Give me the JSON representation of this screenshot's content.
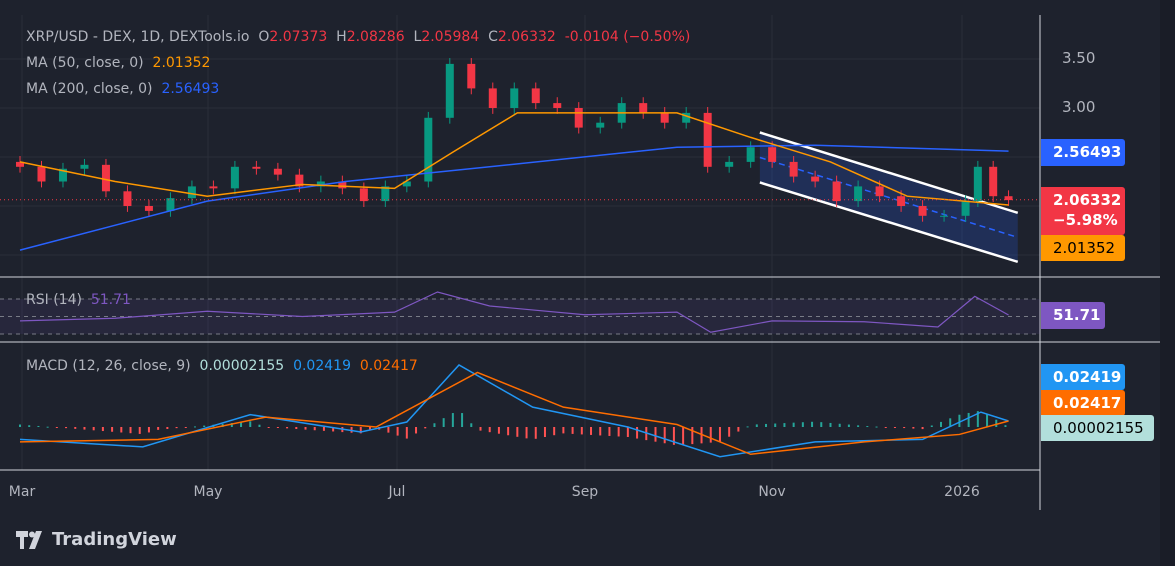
{
  "header": {
    "symbol": "XRP/USD - DEX, 1D, DEXTools.io",
    "o_label": "O",
    "o": "2.07373",
    "h_label": "H",
    "h": "2.08286",
    "l_label": "L",
    "l": "2.05984",
    "c_label": "C",
    "c": "2.06332",
    "change": "-0.0104 (−0.50%)"
  },
  "ma50": {
    "label": "MA (50, close, 0)",
    "value": "2.01352",
    "color": "#ff9800"
  },
  "ma200": {
    "label": "MA (200, close, 0)",
    "value": "2.56493",
    "color": "#2962ff"
  },
  "rsi": {
    "label": "RSI (14)",
    "value": "51.71",
    "color": "#7e57c2"
  },
  "macd": {
    "label": "MACD (12, 26, close, 9)",
    "hist": "0.00002155",
    "macd": "0.02419",
    "signal": "0.02417"
  },
  "price_axis": {
    "ticks": [
      "3.50",
      "3.00"
    ],
    "tags": {
      "ma200": "2.56493",
      "price": "2.06332",
      "price_change": "−5.98%",
      "ma50": "2.01352",
      "rsi": "51.71",
      "macd": "0.02419",
      "signal": "0.02417",
      "hist": "0.00002155"
    }
  },
  "time_axis": [
    "Mar",
    "May",
    "Jul",
    "Sep",
    "Nov",
    "2026"
  ],
  "branding": {
    "name": "TradingView"
  },
  "colors": {
    "up": "#089981",
    "down": "#f23645",
    "background": "#1e222d"
  },
  "chart_data": {
    "type": "candlestick",
    "price_range": [
      1.5,
      3.75
    ],
    "closes": [
      [
        "2025-03-01",
        2.4
      ],
      [
        "2025-03-08",
        2.25
      ],
      [
        "2025-03-15",
        2.38
      ],
      [
        "2025-03-22",
        2.42
      ],
      [
        "2025-03-29",
        2.15
      ],
      [
        "2025-04-05",
        2.0
      ],
      [
        "2025-04-12",
        1.95
      ],
      [
        "2025-04-19",
        2.08
      ],
      [
        "2025-04-26",
        2.2
      ],
      [
        "2025-05-03",
        2.18
      ],
      [
        "2025-05-10",
        2.4
      ],
      [
        "2025-05-17",
        2.38
      ],
      [
        "2025-05-24",
        2.32
      ],
      [
        "2025-05-31",
        2.2
      ],
      [
        "2025-06-07",
        2.25
      ],
      [
        "2025-06-14",
        2.18
      ],
      [
        "2025-06-21",
        2.05
      ],
      [
        "2025-06-28",
        2.2
      ],
      [
        "2025-07-05",
        2.25
      ],
      [
        "2025-07-12",
        2.9
      ],
      [
        "2025-07-19",
        3.45
      ],
      [
        "2025-07-26",
        3.2
      ],
      [
        "2025-08-02",
        3.0
      ],
      [
        "2025-08-09",
        3.2
      ],
      [
        "2025-08-16",
        3.05
      ],
      [
        "2025-08-23",
        3.0
      ],
      [
        "2025-08-30",
        2.8
      ],
      [
        "2025-09-06",
        2.85
      ],
      [
        "2025-09-13",
        3.05
      ],
      [
        "2025-09-20",
        2.95
      ],
      [
        "2025-09-27",
        2.85
      ],
      [
        "2025-10-04",
        2.95
      ],
      [
        "2025-10-11",
        2.4
      ],
      [
        "2025-10-18",
        2.45
      ],
      [
        "2025-10-25",
        2.6
      ],
      [
        "2025-11-01",
        2.45
      ],
      [
        "2025-11-08",
        2.3
      ],
      [
        "2025-11-15",
        2.25
      ],
      [
        "2025-11-22",
        2.05
      ],
      [
        "2025-11-29",
        2.2
      ],
      [
        "2025-12-06",
        2.1
      ],
      [
        "2025-12-13",
        2.0
      ],
      [
        "2025-12-20",
        1.9
      ],
      [
        "2025-12-27",
        1.9
      ],
      [
        "2026-01-03",
        2.05
      ],
      [
        "2026-01-07",
        2.4
      ],
      [
        "2026-01-12",
        2.1
      ],
      [
        "2026-01-17",
        2.06
      ]
    ],
    "ma50": [
      [
        "2025-03-01",
        2.45
      ],
      [
        "2025-04-01",
        2.25
      ],
      [
        "2025-05-01",
        2.1
      ],
      [
        "2025-06-01",
        2.22
      ],
      [
        "2025-07-01",
        2.18
      ],
      [
        "2025-07-20",
        2.55
      ],
      [
        "2025-08-10",
        2.95
      ],
      [
        "2025-09-01",
        2.95
      ],
      [
        "2025-10-01",
        2.95
      ],
      [
        "2025-10-25",
        2.7
      ],
      [
        "2025-11-20",
        2.45
      ],
      [
        "2025-12-15",
        2.1
      ],
      [
        "2026-01-17",
        2.01
      ]
    ],
    "ma200": [
      [
        "2025-03-01",
        1.55
      ],
      [
        "2025-05-01",
        2.05
      ],
      [
        "2025-06-15",
        2.25
      ],
      [
        "2025-08-01",
        2.4
      ],
      [
        "2025-10-01",
        2.6
      ],
      [
        "2025-11-15",
        2.62
      ],
      [
        "2026-01-17",
        2.56
      ]
    ],
    "channel": {
      "upper": [
        [
          "2025-10-28",
          2.75
        ],
        [
          "2026-01-20",
          1.93
        ]
      ],
      "lower": [
        [
          "2025-10-28",
          2.24
        ],
        [
          "2026-01-20",
          1.43
        ]
      ]
    },
    "rsi_series": [
      [
        "2025-03-01",
        45
      ],
      [
        "2025-04-01",
        48
      ],
      [
        "2025-05-01",
        56
      ],
      [
        "2025-06-01",
        50
      ],
      [
        "2025-07-01",
        55
      ],
      [
        "2025-07-15",
        78
      ],
      [
        "2025-08-01",
        62
      ],
      [
        "2025-09-01",
        52
      ],
      [
        "2025-10-01",
        55
      ],
      [
        "2025-10-12",
        32
      ],
      [
        "2025-11-01",
        45
      ],
      [
        "2025-12-01",
        44
      ],
      [
        "2025-12-25",
        38
      ],
      [
        "2026-01-06",
        73
      ],
      [
        "2026-01-17",
        51.71
      ]
    ],
    "rsi_levels": [
      70,
      30
    ],
    "macd_series": [
      [
        "2025-03-01",
        -0.05
      ],
      [
        "2025-04-10",
        -0.08
      ],
      [
        "2025-05-15",
        0.05
      ],
      [
        "2025-06-20",
        -0.02
      ],
      [
        "2025-07-05",
        0.02
      ],
      [
        "2025-07-22",
        0.25
      ],
      [
        "2025-08-15",
        0.08
      ],
      [
        "2025-09-15",
        0.0
      ],
      [
        "2025-10-15",
        -0.12
      ],
      [
        "2025-11-15",
        -0.06
      ],
      [
        "2025-12-20",
        -0.05
      ],
      [
        "2026-01-08",
        0.06
      ],
      [
        "2026-01-17",
        0.02419
      ]
    ],
    "signal_series": [
      [
        "2025-03-01",
        -0.06
      ],
      [
        "2025-04-15",
        -0.05
      ],
      [
        "2025-05-20",
        0.04
      ],
      [
        "2025-06-25",
        0.0
      ],
      [
        "2025-07-28",
        0.22
      ],
      [
        "2025-08-25",
        0.08
      ],
      [
        "2025-10-01",
        0.01
      ],
      [
        "2025-10-25",
        -0.11
      ],
      [
        "2025-12-01",
        -0.06
      ],
      [
        "2026-01-01",
        -0.03
      ],
      [
        "2026-01-17",
        0.02417
      ]
    ]
  }
}
